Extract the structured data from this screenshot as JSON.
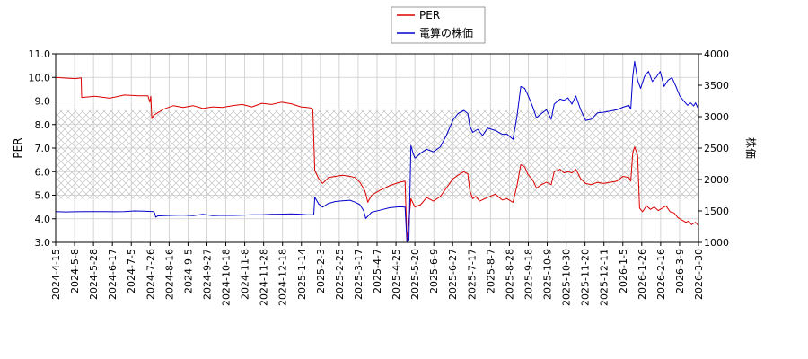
{
  "chart_data": {
    "type": "line",
    "title": "",
    "legend": {
      "placement": "top-center",
      "entries": [
        "PER",
        "電算の株価"
      ]
    },
    "y_left": {
      "label": "PER",
      "lim": [
        3.0,
        11.0
      ],
      "ticks": [
        "3.0",
        "4.0",
        "5.0",
        "6.0",
        "7.0",
        "8.0",
        "9.0",
        "10.0",
        "11.0"
      ]
    },
    "y_right": {
      "label": "株価",
      "lim": [
        1000,
        4000
      ],
      "ticks": [
        "1000",
        "1500",
        "2000",
        "2500",
        "3000",
        "3500",
        "4000"
      ]
    },
    "x_ticks": [
      "2024-4-15",
      "2024-5-8",
      "2024-5-28",
      "2024-6-17",
      "2024-7-5",
      "2024-7-26",
      "2024-8-16",
      "2024-9-5",
      "2024-9-27",
      "2024-10-18",
      "2024-11-8",
      "2024-11-28",
      "2024-12-18",
      "2025-1-14",
      "2025-2-3",
      "2025-2-25",
      "2025-3-17",
      "2025-4-7",
      "2025-4-25",
      "2025-5-20",
      "2025-6-9",
      "2025-6-27",
      "2025-7-17",
      "2025-8-7",
      "2025-8-28",
      "2025-9-18",
      "2025-10-9",
      "2025-10-30",
      "2025-11-20",
      "2025-12-11",
      "2026-1-5",
      "2026-1-26",
      "2026-2-16",
      "2026-3-9",
      "2026-3-30"
    ],
    "grid": true,
    "hatched_band": {
      "y_range_left": [
        4.85,
        8.6
      ]
    },
    "series": [
      {
        "name": "PER",
        "axis": "left",
        "color": "#dd0000",
        "points": [
          [
            0,
            10.0
          ],
          [
            10,
            9.97
          ],
          [
            20,
            9.95
          ],
          [
            26,
            9.98
          ],
          [
            26.5,
            9.15
          ],
          [
            40,
            9.2
          ],
          [
            55,
            9.12
          ],
          [
            70,
            9.25
          ],
          [
            85,
            9.22
          ],
          [
            94,
            9.22
          ],
          [
            96,
            8.95
          ],
          [
            97,
            9.2
          ],
          [
            98,
            8.25
          ],
          [
            100,
            8.4
          ],
          [
            110,
            8.65
          ],
          [
            120,
            8.8
          ],
          [
            130,
            8.72
          ],
          [
            140,
            8.8
          ],
          [
            150,
            8.68
          ],
          [
            160,
            8.75
          ],
          [
            170,
            8.72
          ],
          [
            180,
            8.8
          ],
          [
            190,
            8.85
          ],
          [
            200,
            8.75
          ],
          [
            210,
            8.9
          ],
          [
            220,
            8.85
          ],
          [
            230,
            8.95
          ],
          [
            240,
            8.88
          ],
          [
            250,
            8.75
          ],
          [
            256,
            8.72
          ],
          [
            260,
            8.7
          ],
          [
            262,
            8.65
          ],
          [
            264,
            6.05
          ],
          [
            268,
            5.7
          ],
          [
            272,
            5.5
          ],
          [
            278,
            5.75
          ],
          [
            285,
            5.8
          ],
          [
            292,
            5.85
          ],
          [
            300,
            5.8
          ],
          [
            305,
            5.75
          ],
          [
            310,
            5.55
          ],
          [
            315,
            5.2
          ],
          [
            317,
            4.9
          ],
          [
            318,
            4.7
          ],
          [
            322,
            5.0
          ],
          [
            330,
            5.2
          ],
          [
            340,
            5.4
          ],
          [
            350,
            5.55
          ],
          [
            356,
            5.6
          ],
          [
            358,
            3.05
          ],
          [
            362,
            4.85
          ],
          [
            366,
            4.5
          ],
          [
            372,
            4.6
          ],
          [
            378,
            4.9
          ],
          [
            385,
            4.75
          ],
          [
            392,
            4.95
          ],
          [
            398,
            5.3
          ],
          [
            405,
            5.7
          ],
          [
            410,
            5.85
          ],
          [
            416,
            6.0
          ],
          [
            420,
            5.9
          ],
          [
            422,
            5.2
          ],
          [
            425,
            4.85
          ],
          [
            428,
            4.95
          ],
          [
            432,
            4.75
          ],
          [
            440,
            4.9
          ],
          [
            448,
            5.05
          ],
          [
            455,
            4.8
          ],
          [
            460,
            4.85
          ],
          [
            466,
            4.7
          ],
          [
            470,
            5.4
          ],
          [
            474,
            6.3
          ],
          [
            478,
            6.2
          ],
          [
            481,
            5.9
          ],
          [
            486,
            5.65
          ],
          [
            490,
            5.3
          ],
          [
            495,
            5.45
          ],
          [
            500,
            5.55
          ],
          [
            505,
            5.45
          ],
          [
            508,
            6.0
          ],
          [
            514,
            6.1
          ],
          [
            518,
            5.95
          ],
          [
            522,
            6.0
          ],
          [
            526,
            5.95
          ],
          [
            530,
            6.1
          ],
          [
            535,
            5.7
          ],
          [
            540,
            5.5
          ],
          [
            546,
            5.45
          ],
          [
            552,
            5.55
          ],
          [
            558,
            5.5
          ],
          [
            565,
            5.55
          ],
          [
            572,
            5.6
          ],
          [
            578,
            5.8
          ],
          [
            584,
            5.75
          ],
          [
            586,
            5.6
          ],
          [
            588,
            6.8
          ],
          [
            590,
            7.05
          ],
          [
            593,
            6.7
          ],
          [
            595,
            4.45
          ],
          [
            598,
            4.3
          ],
          [
            602,
            4.55
          ],
          [
            606,
            4.4
          ],
          [
            610,
            4.5
          ],
          [
            614,
            4.35
          ],
          [
            618,
            4.45
          ],
          [
            622,
            4.55
          ],
          [
            626,
            4.3
          ],
          [
            630,
            4.25
          ],
          [
            634,
            4.05
          ],
          [
            638,
            3.95
          ],
          [
            642,
            3.85
          ],
          [
            645,
            3.9
          ],
          [
            648,
            3.75
          ],
          [
            650,
            3.8
          ],
          [
            652,
            3.85
          ],
          [
            655,
            3.7
          ]
        ]
      },
      {
        "name": "電算の株価",
        "axis": "right",
        "color": "#0000cc",
        "points": [
          [
            0,
            1490
          ],
          [
            10,
            1485
          ],
          [
            20,
            1487
          ],
          [
            30,
            1490
          ],
          [
            40,
            1488
          ],
          [
            50,
            1490
          ],
          [
            60,
            1487
          ],
          [
            70,
            1490
          ],
          [
            80,
            1500
          ],
          [
            90,
            1495
          ],
          [
            100,
            1490
          ],
          [
            101,
            1460
          ],
          [
            102,
            1400
          ],
          [
            104,
            1420
          ],
          [
            110,
            1425
          ],
          [
            120,
            1430
          ],
          [
            130,
            1435
          ],
          [
            140,
            1425
          ],
          [
            150,
            1445
          ],
          [
            160,
            1425
          ],
          [
            170,
            1430
          ],
          [
            180,
            1428
          ],
          [
            190,
            1432
          ],
          [
            200,
            1440
          ],
          [
            210,
            1438
          ],
          [
            220,
            1445
          ],
          [
            230,
            1448
          ],
          [
            240,
            1455
          ],
          [
            250,
            1445
          ],
          [
            256,
            1440
          ],
          [
            260,
            1438
          ],
          [
            263,
            1440
          ],
          [
            264,
            1720
          ],
          [
            268,
            1610
          ],
          [
            272,
            1560
          ],
          [
            278,
            1620
          ],
          [
            285,
            1650
          ],
          [
            292,
            1660
          ],
          [
            300,
            1670
          ],
          [
            305,
            1640
          ],
          [
            310,
            1600
          ],
          [
            314,
            1500
          ],
          [
            316,
            1380
          ],
          [
            322,
            1480
          ],
          [
            330,
            1510
          ],
          [
            340,
            1550
          ],
          [
            350,
            1565
          ],
          [
            356,
            1560
          ],
          [
            358,
            1000
          ],
          [
            360,
            1040
          ],
          [
            362,
            2540
          ],
          [
            364,
            2430
          ],
          [
            366,
            2340
          ],
          [
            372,
            2420
          ],
          [
            378,
            2480
          ],
          [
            385,
            2440
          ],
          [
            392,
            2520
          ],
          [
            398,
            2700
          ],
          [
            405,
            2950
          ],
          [
            410,
            3050
          ],
          [
            416,
            3100
          ],
          [
            420,
            3050
          ],
          [
            422,
            2850
          ],
          [
            425,
            2750
          ],
          [
            430,
            2800
          ],
          [
            435,
            2700
          ],
          [
            440,
            2820
          ],
          [
            448,
            2780
          ],
          [
            455,
            2720
          ],
          [
            460,
            2720
          ],
          [
            466,
            2640
          ],
          [
            470,
            3000
          ],
          [
            474,
            3480
          ],
          [
            478,
            3450
          ],
          [
            481,
            3350
          ],
          [
            486,
            3160
          ],
          [
            490,
            2980
          ],
          [
            495,
            3050
          ],
          [
            500,
            3110
          ],
          [
            505,
            2960
          ],
          [
            508,
            3200
          ],
          [
            514,
            3280
          ],
          [
            518,
            3260
          ],
          [
            522,
            3300
          ],
          [
            526,
            3200
          ],
          [
            530,
            3330
          ],
          [
            535,
            3110
          ],
          [
            540,
            2940
          ],
          [
            546,
            2960
          ],
          [
            552,
            3060
          ],
          [
            558,
            3070
          ],
          [
            565,
            3090
          ],
          [
            572,
            3110
          ],
          [
            578,
            3150
          ],
          [
            584,
            3180
          ],
          [
            586,
            3120
          ],
          [
            588,
            3640
          ],
          [
            590,
            3880
          ],
          [
            593,
            3580
          ],
          [
            596,
            3450
          ],
          [
            600,
            3640
          ],
          [
            604,
            3720
          ],
          [
            608,
            3560
          ],
          [
            612,
            3630
          ],
          [
            616,
            3720
          ],
          [
            620,
            3480
          ],
          [
            624,
            3580
          ],
          [
            628,
            3620
          ],
          [
            632,
            3480
          ],
          [
            636,
            3330
          ],
          [
            640,
            3250
          ],
          [
            644,
            3180
          ],
          [
            647,
            3220
          ],
          [
            650,
            3170
          ],
          [
            652,
            3220
          ],
          [
            655,
            3120
          ]
        ]
      }
    ]
  }
}
